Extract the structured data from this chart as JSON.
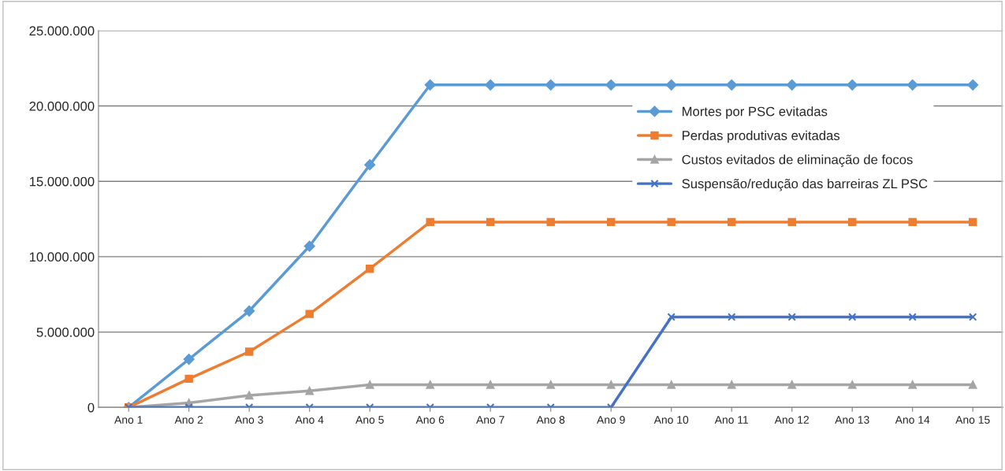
{
  "chart_data": {
    "type": "line",
    "categories": [
      "Ano 1",
      "Ano 2",
      "Ano 3",
      "Ano 4",
      "Ano 5",
      "Ano 6",
      "Ano 7",
      "Ano 8",
      "Ano 9",
      "Ano 10",
      "Ano 11",
      "Ano 12",
      "Ano 13",
      "Ano 14",
      "Ano 15"
    ],
    "series": [
      {
        "name": "Mortes por PSC evitadas",
        "color": "#5b9bd5",
        "marker": "diamond",
        "values": [
          0,
          3200000,
          6400000,
          10700000,
          16100000,
          21400000,
          21400000,
          21400000,
          21400000,
          21400000,
          21400000,
          21400000,
          21400000,
          21400000,
          21400000
        ]
      },
      {
        "name": "Perdas produtivas evitadas",
        "color": "#ed7d31",
        "marker": "square",
        "values": [
          0,
          1900000,
          3700000,
          6200000,
          9200000,
          12300000,
          12300000,
          12300000,
          12300000,
          12300000,
          12300000,
          12300000,
          12300000,
          12300000,
          12300000
        ]
      },
      {
        "name": "Custos evitados de eliminação de focos",
        "color": "#a5a5a5",
        "marker": "triangle",
        "values": [
          0,
          300000,
          800000,
          1100000,
          1500000,
          1500000,
          1500000,
          1500000,
          1500000,
          1500000,
          1500000,
          1500000,
          1500000,
          1500000,
          1500000
        ]
      },
      {
        "name": "Suspensão/redução das barreiras ZL PSC",
        "color": "#4472c4",
        "marker": "cross",
        "values": [
          0,
          0,
          0,
          0,
          0,
          0,
          0,
          0,
          0,
          6000000,
          6000000,
          6000000,
          6000000,
          6000000,
          6000000
        ]
      }
    ],
    "ylim": [
      0,
      25000000
    ],
    "yticks": [
      {
        "value": 0,
        "label": "0"
      },
      {
        "value": 5000000,
        "label": "5.000.000"
      },
      {
        "value": 10000000,
        "label": "10.000.000"
      },
      {
        "value": 15000000,
        "label": "15.000.000"
      },
      {
        "value": 20000000,
        "label": "20.000.000"
      },
      {
        "value": 25000000,
        "label": "25.000.000"
      }
    ],
    "grid": "y",
    "legend": "top right",
    "line_style": "solid"
  }
}
